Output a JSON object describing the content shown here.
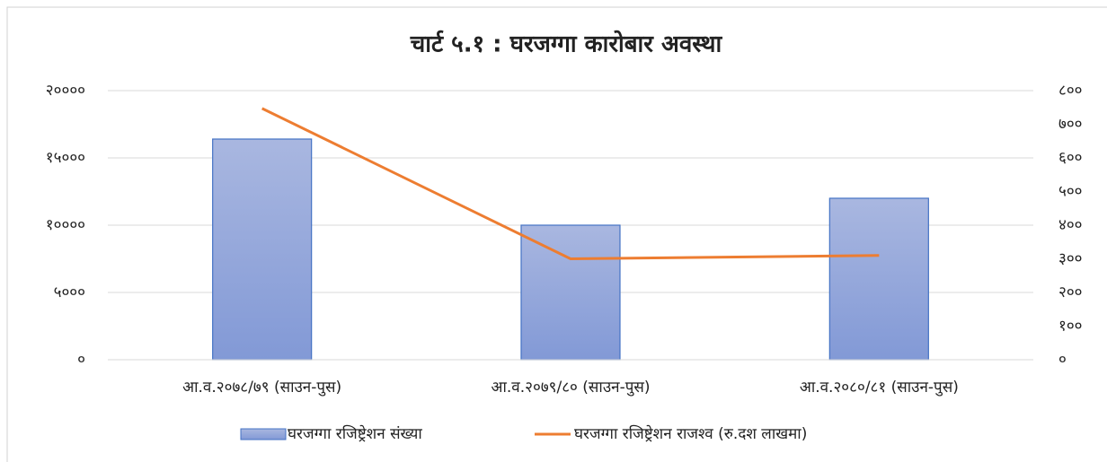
{
  "chart_data": {
    "type": "bar",
    "title": "चार्ट ५.१ : घरजग्गा कारोबार अवस्था",
    "categories": [
      "आ.व.२०७८/७९ (साउन-पुस)",
      "आ.व.२०७९/८० (साउन-पुस)",
      "आ.व.२०८०/८१ (साउन-पुस)"
    ],
    "series": [
      {
        "name": "घरजग्गा रजिष्ट्रेशन संख्या",
        "type": "bar",
        "color": "#8fa4d8",
        "values": [
          16400,
          10000,
          12000
        ]
      },
      {
        "name": "घरजग्गा रजिष्ट्रेशन राजश्व (रु.दश लाखमा)",
        "type": "line",
        "color": "#ed7d31",
        "axis": "y2",
        "values": [
          747,
          300,
          310
        ]
      }
    ],
    "ylim": [
      0,
      20000
    ],
    "yticks": [
      {
        "value": 0,
        "label": "०"
      },
      {
        "value": 5000,
        "label": "५०००"
      },
      {
        "value": 10000,
        "label": "१००००"
      },
      {
        "value": 15000,
        "label": "१५०००"
      },
      {
        "value": 20000,
        "label": "२००००"
      }
    ],
    "y2lim": [
      0,
      800
    ],
    "y2ticks": [
      {
        "value": 0,
        "label": "०"
      },
      {
        "value": 100,
        "label": "१००"
      },
      {
        "value": 200,
        "label": "२००"
      },
      {
        "value": 300,
        "label": "३००"
      },
      {
        "value": 400,
        "label": "४००"
      },
      {
        "value": 500,
        "label": "५००"
      },
      {
        "value": 600,
        "label": "६००"
      },
      {
        "value": 700,
        "label": "७००"
      },
      {
        "value": 800,
        "label": "८००"
      }
    ],
    "grid": true,
    "legend": "bottom"
  }
}
